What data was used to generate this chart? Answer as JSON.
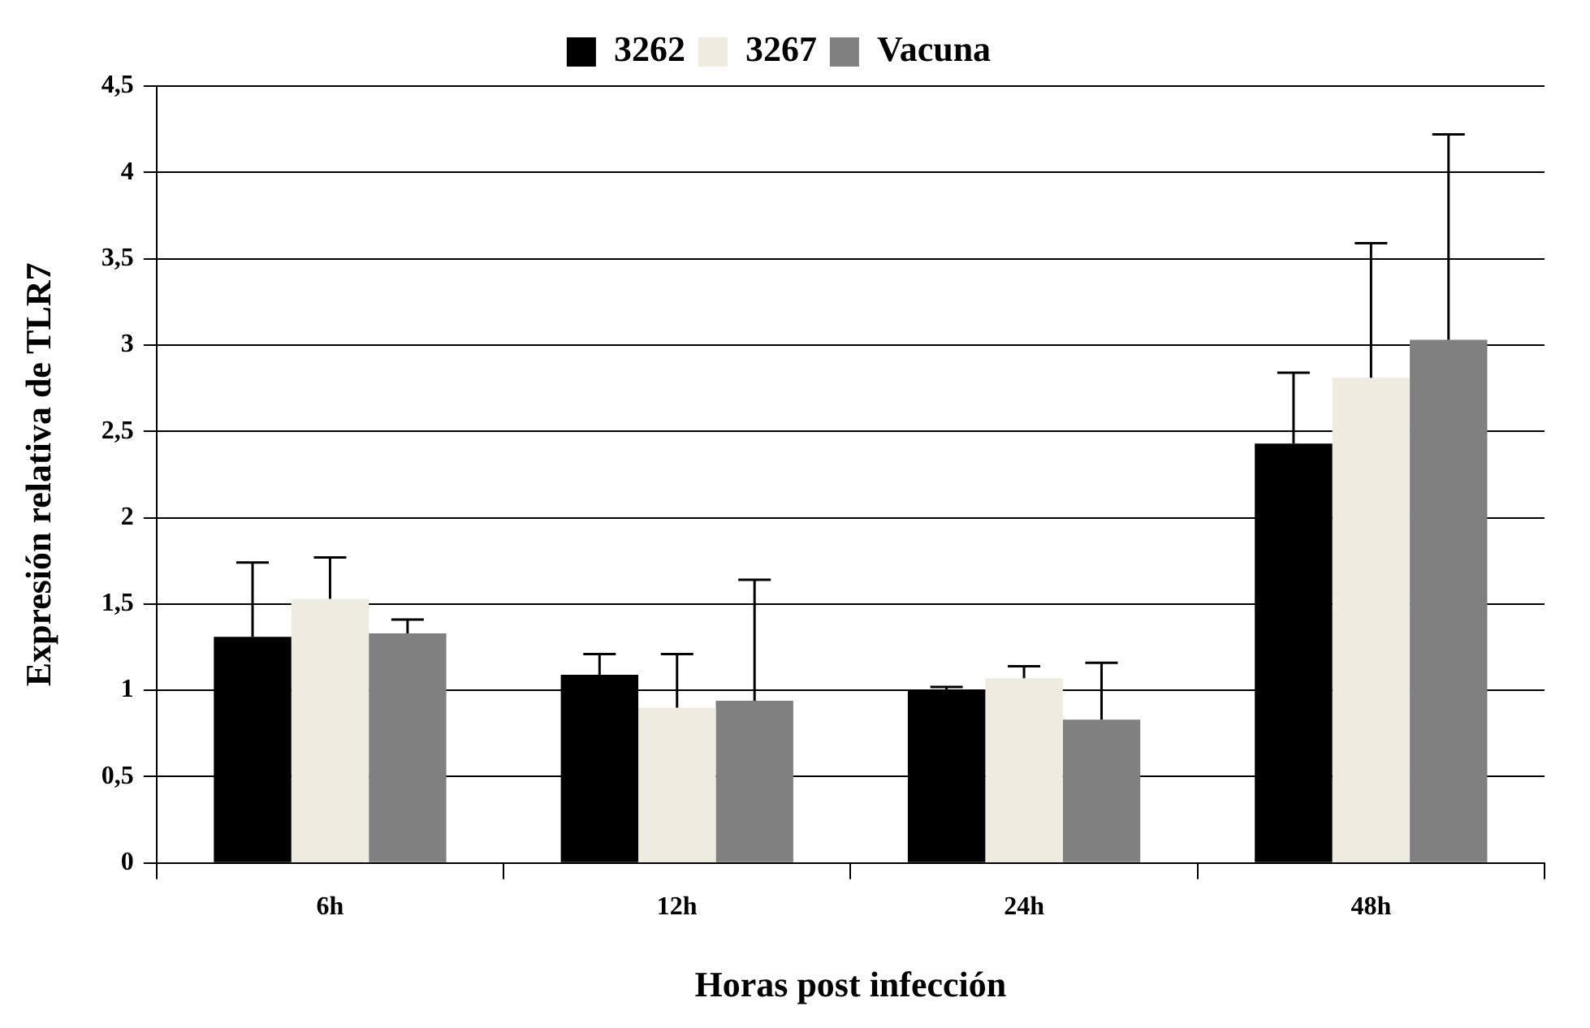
{
  "chart_data": {
    "type": "bar",
    "xlabel": "Horas post infección",
    "ylabel": "Expresión relativa de TLR7",
    "categories": [
      "6h",
      "12h",
      "24h",
      "48h"
    ],
    "series": [
      {
        "name": "3262",
        "color": "#000000",
        "values": [
          1.31,
          1.09,
          1.0,
          2.43
        ],
        "errors": [
          [
            1.31,
            1.74
          ],
          [
            1.09,
            1.21
          ],
          [
            1.0,
            1.02
          ],
          [
            2.43,
            2.84
          ]
        ]
      },
      {
        "name": "3267",
        "color": "#eeebe0",
        "values": [
          1.53,
          0.9,
          1.07,
          2.81
        ],
        "errors": [
          [
            1.53,
            1.77
          ],
          [
            0.9,
            1.21
          ],
          [
            1.07,
            1.14
          ],
          [
            2.81,
            3.59
          ]
        ]
      },
      {
        "name": "Vacuna",
        "color": "#808080",
        "values": [
          1.33,
          0.94,
          0.83,
          3.03
        ],
        "errors": [
          [
            1.33,
            1.41
          ],
          [
            0.94,
            1.64
          ],
          [
            0.83,
            1.16
          ],
          [
            3.03,
            4.22
          ]
        ]
      }
    ],
    "ylim": [
      0,
      4.5
    ],
    "yticks": [
      0,
      {
        "value": 0.5,
        "label": "0,5"
      },
      1,
      {
        "value": 1.5,
        "label": "1,5"
      },
      2,
      {
        "value": 2.5,
        "label": "2,5"
      },
      3,
      {
        "value": 3.5,
        "label": "3,5"
      },
      4,
      {
        "value": 4.5,
        "label": "4,5"
      }
    ],
    "grid": "y",
    "legend": "top"
  }
}
